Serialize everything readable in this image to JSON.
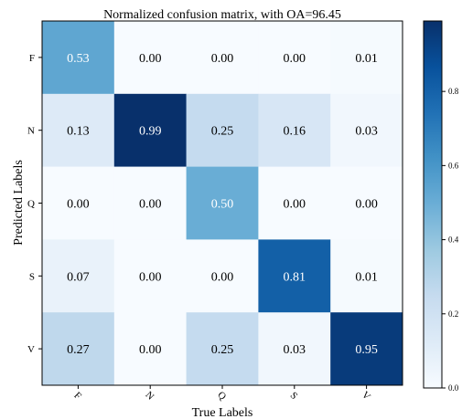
{
  "chart_data": {
    "type": "heatmap",
    "title": "Normalized confusion matrix, with OA=96.45",
    "xlabel": "True Labels",
    "ylabel": "Predicted Labels",
    "x_categories": [
      "F",
      "N",
      "Q",
      "S",
      "V"
    ],
    "y_categories": [
      "F",
      "N",
      "Q",
      "S",
      "V"
    ],
    "values": [
      [
        0.53,
        0.0,
        0.0,
        0.0,
        0.01
      ],
      [
        0.13,
        0.99,
        0.25,
        0.16,
        0.03
      ],
      [
        0.0,
        0.0,
        0.5,
        0.0,
        0.0
      ],
      [
        0.07,
        0.0,
        0.0,
        0.81,
        0.01
      ],
      [
        0.27,
        0.0,
        0.25,
        0.03,
        0.95
      ]
    ],
    "cell_labels": [
      [
        "0.53",
        "0.00",
        "0.00",
        "0.00",
        "0.01"
      ],
      [
        "0.13",
        "0.99",
        "0.25",
        "0.16",
        "0.03"
      ],
      [
        "0.00",
        "0.00",
        "0.50",
        "0.00",
        "0.00"
      ],
      [
        "0.07",
        "0.00",
        "0.00",
        "0.81",
        "0.01"
      ],
      [
        "0.27",
        "0.00",
        "0.25",
        "0.03",
        "0.95"
      ]
    ],
    "colorbar": {
      "range": [
        0,
        0.99
      ],
      "ticks": [
        0.0,
        0.2,
        0.4,
        0.6,
        0.8
      ],
      "tick_labels": [
        "0.0",
        "0.2",
        "0.4",
        "0.6",
        "0.8"
      ]
    },
    "colormap": "Blues",
    "colormap_stops": [
      "#f7fbff",
      "#deebf7",
      "#c6dbef",
      "#9ecae1",
      "#6baed6",
      "#4292c6",
      "#2171b5",
      "#08519c",
      "#08306b"
    ],
    "x_tick_rotation_deg": 45,
    "grid": false,
    "legend": "none"
  }
}
